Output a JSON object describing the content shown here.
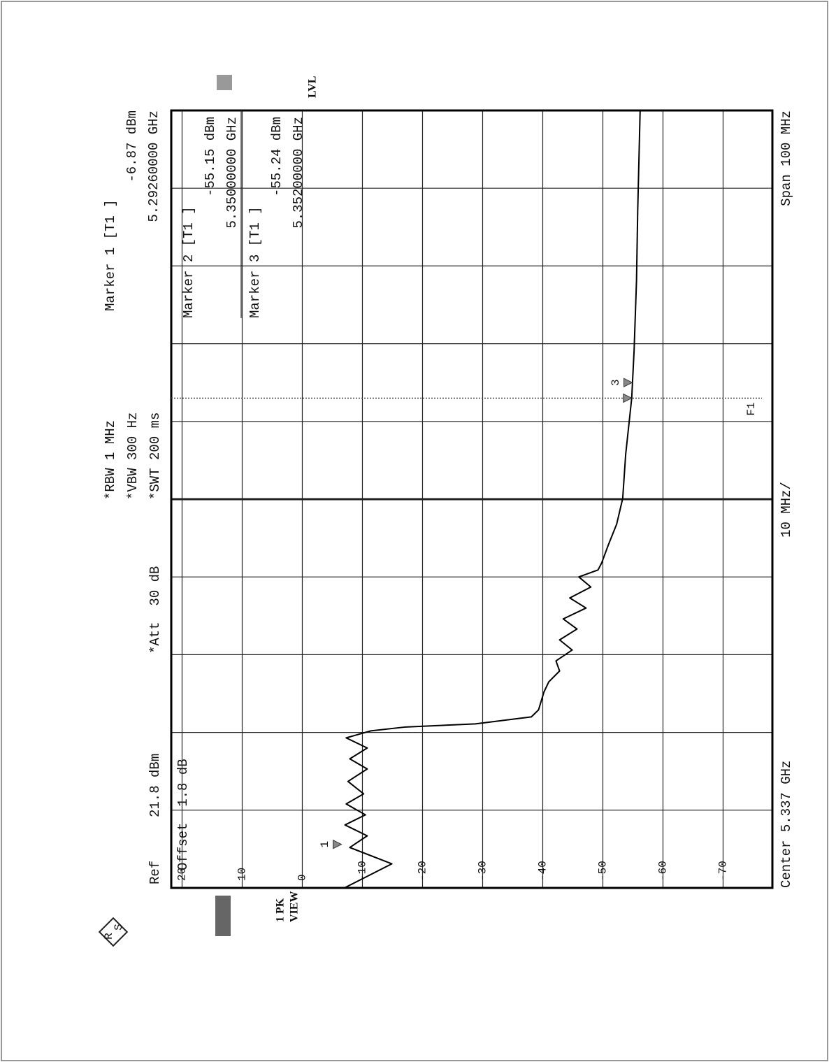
{
  "chart_data": {
    "type": "line",
    "ref": "Ref",
    "ref_level": "21.8 dBm",
    "att": "*Att  30 dB",
    "rbw": "*RBW 1 MHz",
    "vbw": "*VBW 300 Hz",
    "swt": "*SWT 200 ms",
    "offset": "Offset  1.8 dB",
    "trace": "1 PK",
    "view": "VIEW",
    "lvl": "LVL",
    "center": "Center 5.337 GHz",
    "per_div": "10 MHz/",
    "span": "Span 100 MHz",
    "logo": [
      "R",
      "S"
    ],
    "f1": {
      "label": "F1",
      "value": 5.35
    },
    "markers": [
      {
        "label": "Marker 1 [T1 ]",
        "level": -6.87,
        "level_label": "-6.87 dBm",
        "freq": 5.2926,
        "freq_label": "5.29260000 GHz",
        "tag": "1"
      },
      {
        "label": "Marker 2 [T1 ]",
        "level": -55.15,
        "level_label": "-55.15 dBm",
        "freq": 5.35,
        "freq_label": "5.35000000 GHz"
      },
      {
        "label": "Marker 3 [T1 ]",
        "level": -55.24,
        "level_label": "-55.24 dBm",
        "freq": 5.352,
        "freq_label": "5.35200000 GHz",
        "tag": "3"
      }
    ],
    "x": [
      5.287,
      5.2901,
      5.2922,
      5.2937,
      5.2951,
      5.2964,
      5.2978,
      5.2991,
      5.3007,
      5.3023,
      5.3036,
      5.305,
      5.3063,
      5.3072,
      5.3077,
      5.3081,
      5.309,
      5.3099,
      5.3122,
      5.3135,
      5.3149,
      5.3162,
      5.3176,
      5.3189,
      5.3203,
      5.3216,
      5.323,
      5.3243,
      5.3257,
      5.327,
      5.3279,
      5.3288,
      5.3311,
      5.3338,
      5.3371,
      5.3428,
      5.35,
      5.3562,
      5.3652,
      5.3742,
      5.387
    ],
    "series": [
      {
        "name": "1 PK",
        "color": "#000000",
        "values": [
          -7,
          -14.9,
          -7.9,
          -10.8,
          -7.1,
          -10.5,
          -7.3,
          -10.2,
          -7.6,
          -10.8,
          -7.9,
          -10.8,
          -7.3,
          -11.4,
          -17.2,
          -28.8,
          -38.1,
          -39.3,
          -40.2,
          -41,
          -42.8,
          -42.2,
          -44.9,
          -42.8,
          -45.7,
          -43.4,
          -47.2,
          -44.5,
          -48,
          -46,
          -49.2,
          -49.8,
          -50.9,
          -52.3,
          -53.3,
          -53.8,
          -54.8,
          -55.2,
          -55.6,
          -55.8,
          -56.2
        ]
      }
    ],
    "xlim": [
      5.287,
      5.387
    ],
    "xticks": [
      5.287,
      5.297,
      5.307,
      5.317,
      5.327,
      5.337,
      5.347,
      5.357,
      5.367,
      5.377,
      5.387
    ],
    "ylim": [
      -78.2,
      21.8
    ],
    "yticks": [
      20,
      10,
      0,
      -10,
      -20,
      -30,
      -40,
      -50,
      -60,
      -70
    ],
    "grid": true
  }
}
